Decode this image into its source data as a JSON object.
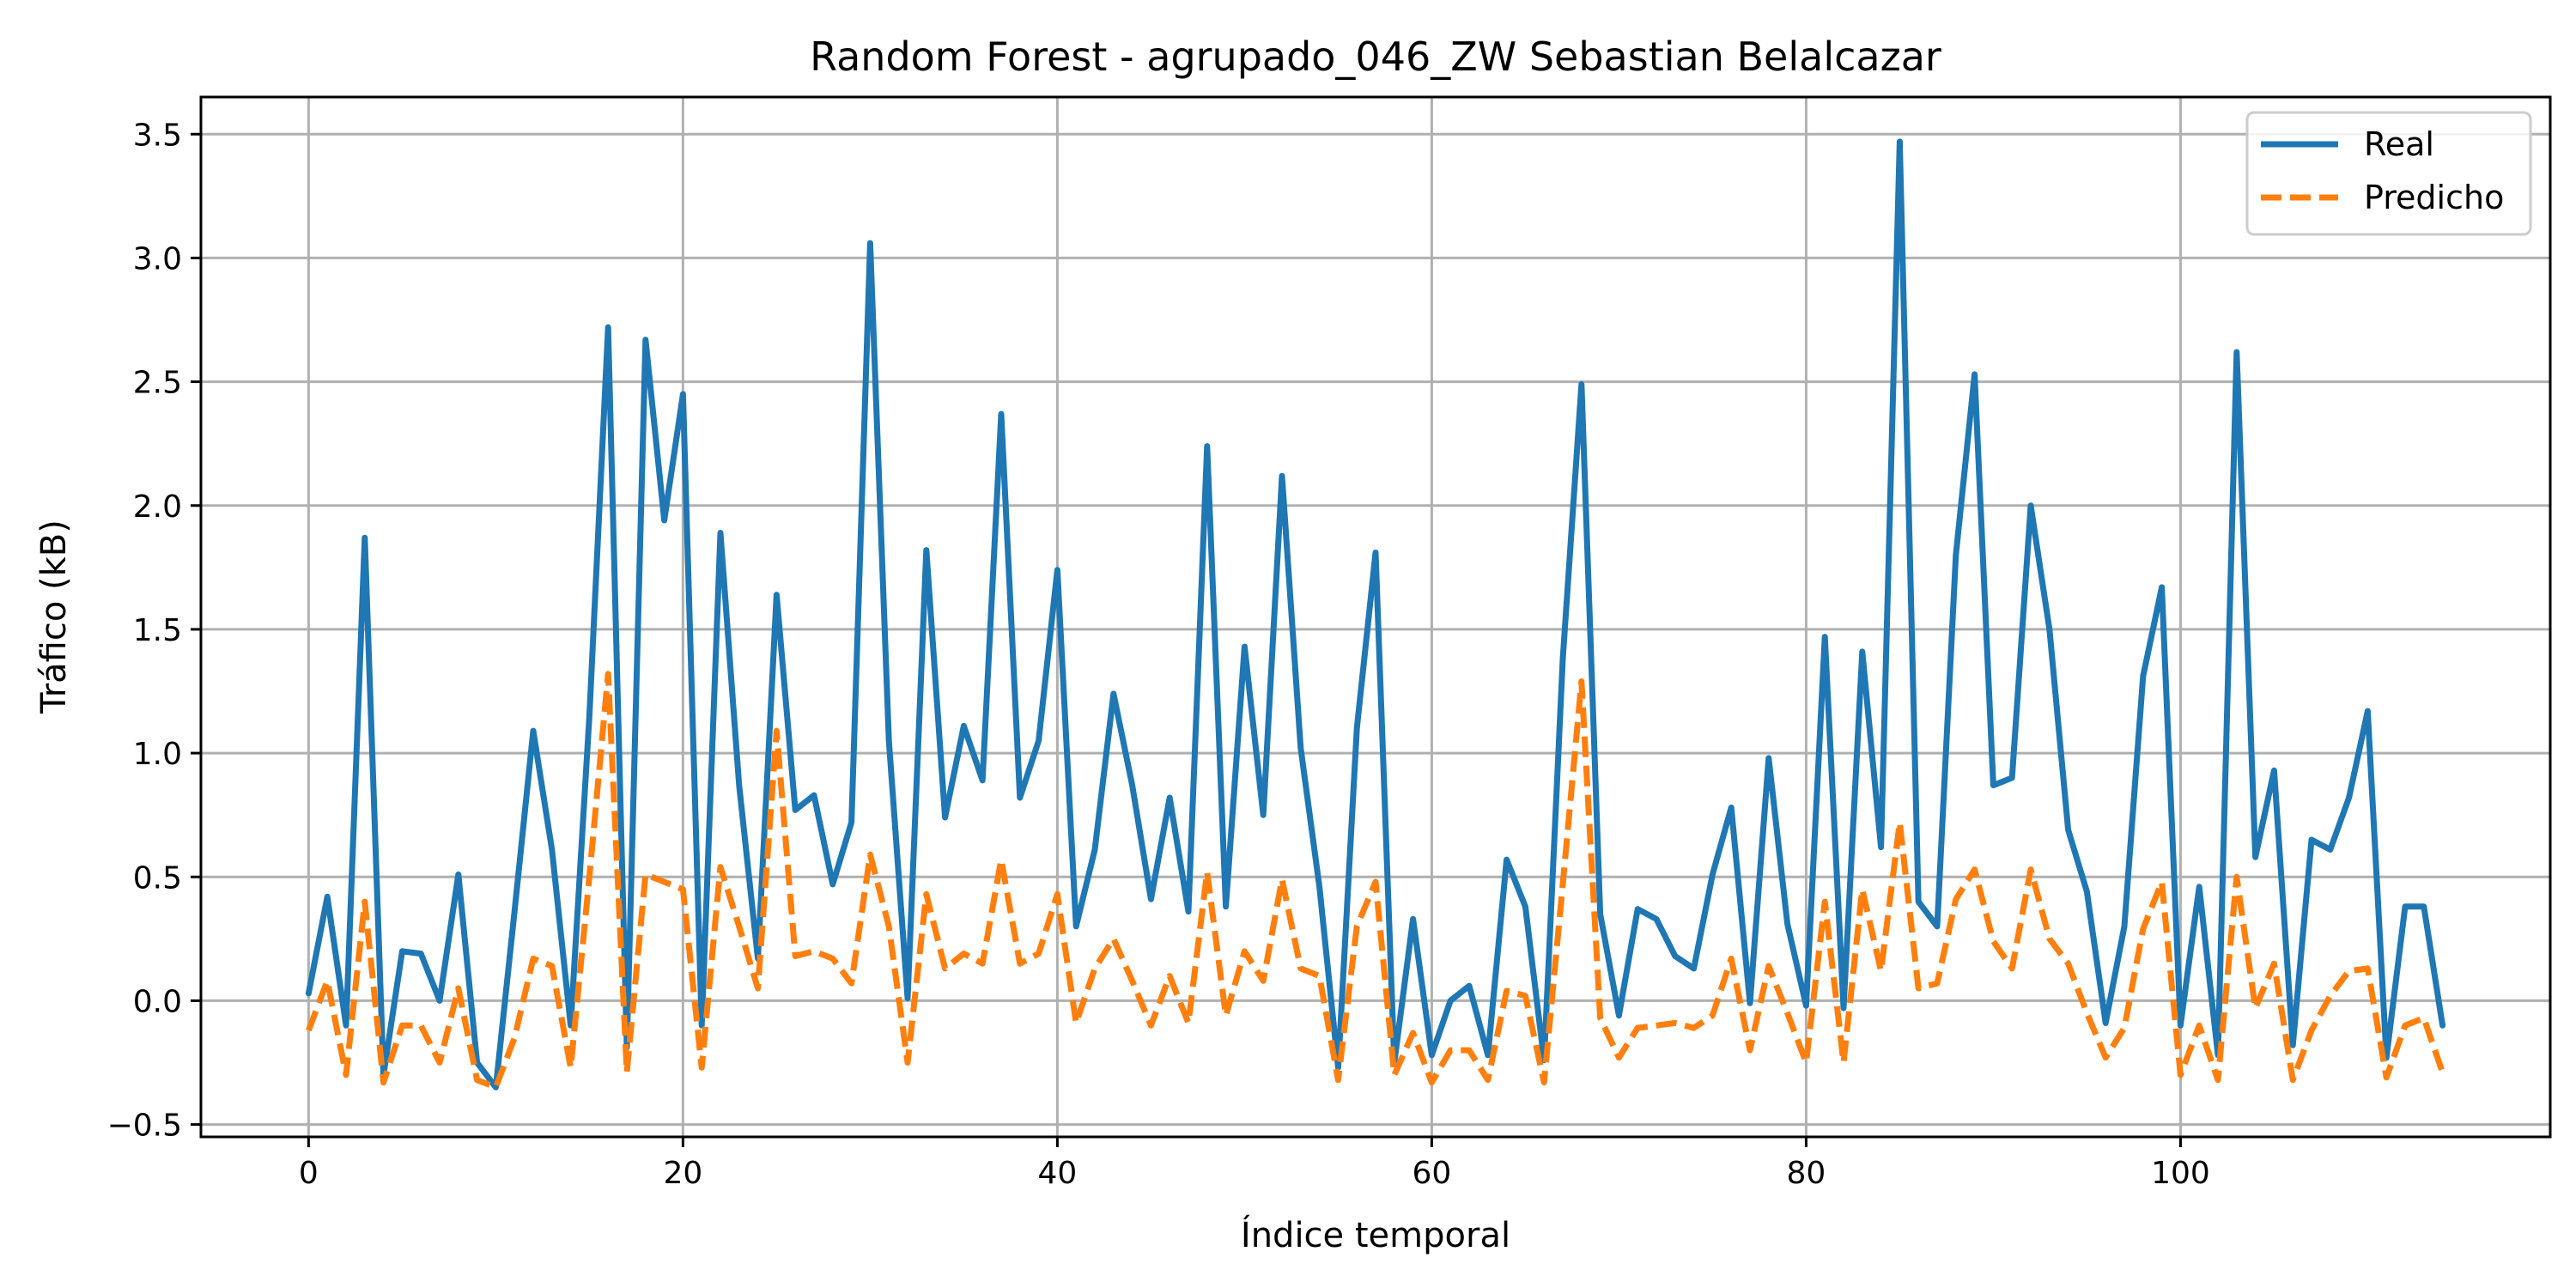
{
  "chart_data": {
    "type": "line",
    "title": "Random Forest - agrupado_046_ZW Sebastian Belalcazar",
    "xlabel": "Índice temporal",
    "ylabel": "Tráfico (kB)",
    "xlim": [
      -5.75,
      119.75
    ],
    "ylim": [
      -0.55,
      3.65
    ],
    "xticks": [
      0,
      20,
      40,
      60,
      80,
      100
    ],
    "xtick_labels": [
      "0",
      "20",
      "40",
      "60",
      "80",
      "100"
    ],
    "yticks": [
      -0.5,
      0.0,
      0.5,
      1.0,
      1.5,
      2.0,
      2.5,
      3.0,
      3.5
    ],
    "ytick_labels": [
      "−0.5",
      "0.0",
      "0.5",
      "1.0",
      "1.5",
      "2.0",
      "2.5",
      "3.0",
      "3.5"
    ],
    "grid": true,
    "legend_position": "top-right",
    "series": [
      {
        "name": "Real",
        "color": "#1f77b4",
        "style": "solid",
        "values": [
          0.03,
          0.42,
          -0.1,
          1.87,
          -0.3,
          0.2,
          0.19,
          0.0,
          0.51,
          -0.25,
          -0.35,
          0.36,
          1.09,
          0.61,
          -0.1,
          1.15,
          2.72,
          -0.19,
          2.67,
          1.94,
          2.45,
          -0.1,
          1.89,
          0.87,
          0.17,
          1.64,
          0.77,
          0.83,
          0.47,
          0.72,
          3.06,
          1.05,
          0.01,
          1.82,
          0.74,
          1.11,
          0.89,
          2.37,
          0.82,
          1.05,
          1.74,
          0.3,
          0.61,
          1.24,
          0.87,
          0.41,
          0.82,
          0.36,
          2.24,
          0.38,
          1.43,
          0.75,
          2.12,
          1.02,
          0.46,
          -0.27,
          1.1,
          1.81,
          -0.25,
          0.33,
          -0.22,
          0.0,
          0.06,
          -0.22,
          0.57,
          0.38,
          -0.24,
          1.38,
          2.49,
          0.35,
          -0.06,
          0.37,
          0.33,
          0.18,
          0.13,
          0.51,
          0.78,
          -0.01,
          0.98,
          0.31,
          -0.02,
          1.47,
          -0.03,
          1.41,
          0.62,
          3.47,
          0.4,
          0.3,
          1.8,
          2.53,
          0.87,
          0.9,
          2.0,
          1.5,
          0.69,
          0.44,
          -0.09,
          0.3,
          1.31,
          1.67,
          -0.1,
          0.46,
          -0.22,
          2.62,
          0.58,
          0.93,
          -0.18,
          0.65,
          0.61,
          0.82,
          1.17,
          -0.23,
          0.38,
          0.38,
          -0.1
        ]
      },
      {
        "name": "Predicho",
        "color": "#ff7f0e",
        "style": "dashed",
        "values": [
          -0.12,
          0.08,
          -0.3,
          0.4,
          -0.33,
          -0.1,
          -0.1,
          -0.25,
          0.05,
          -0.32,
          -0.35,
          -0.15,
          0.17,
          0.14,
          -0.27,
          0.5,
          1.32,
          -0.29,
          0.51,
          0.48,
          0.45,
          -0.27,
          0.54,
          0.3,
          0.05,
          1.09,
          0.18,
          0.2,
          0.17,
          0.07,
          0.59,
          0.3,
          -0.25,
          0.43,
          0.13,
          0.19,
          0.15,
          0.57,
          0.15,
          0.19,
          0.43,
          -0.09,
          0.13,
          0.25,
          0.08,
          -0.1,
          0.1,
          -0.09,
          0.52,
          -0.06,
          0.2,
          0.08,
          0.49,
          0.13,
          0.1,
          -0.32,
          0.3,
          0.48,
          -0.3,
          -0.13,
          -0.33,
          -0.2,
          -0.2,
          -0.32,
          0.04,
          0.02,
          -0.33,
          0.47,
          1.29,
          -0.07,
          -0.23,
          -0.11,
          -0.1,
          -0.09,
          -0.11,
          -0.06,
          0.17,
          -0.2,
          0.14,
          -0.05,
          -0.25,
          0.4,
          -0.25,
          0.45,
          0.12,
          0.72,
          0.05,
          0.07,
          0.41,
          0.53,
          0.24,
          0.13,
          0.53,
          0.25,
          0.15,
          -0.05,
          -0.23,
          -0.11,
          0.29,
          0.48,
          -0.3,
          -0.1,
          -0.32,
          0.5,
          -0.03,
          0.15,
          -0.32,
          -0.12,
          0.02,
          0.12,
          0.13,
          -0.31,
          -0.1,
          -0.07,
          -0.29
        ]
      }
    ]
  }
}
